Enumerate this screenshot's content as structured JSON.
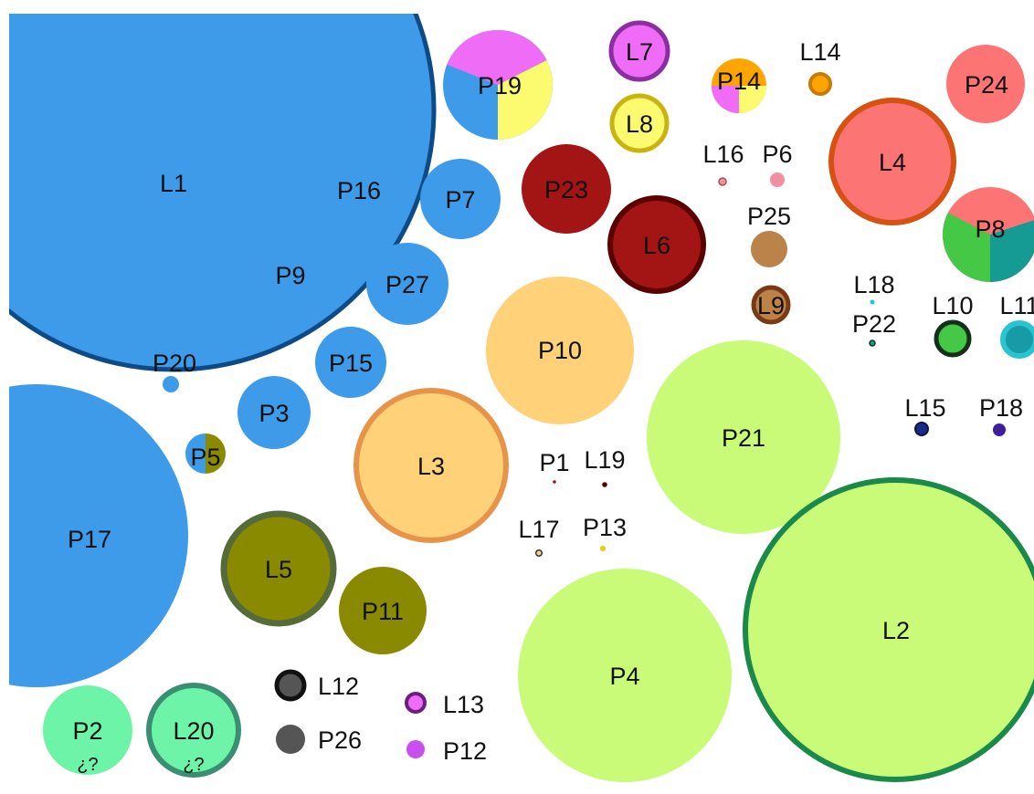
{
  "colors": {
    "blue": "#3d9bea",
    "blue_dark_outline": "#0e4a86",
    "light_orange": "#ffd27a",
    "orange_outline": "#e8934a",
    "green_light": "#c9fb79",
    "green_outline": "#1a8a4a",
    "mint": "#6ef4a8",
    "teal_outline": "#3a8f73",
    "olive": "#8a8a00",
    "olive_outline": "#556b3a",
    "dark_red": "#a31414",
    "darkest_red": "#5a0000",
    "salmon": "#fd7474",
    "salmon_outline": "#d55212",
    "brown": "#bb8249",
    "brown_outline": "#7a3b14",
    "magenta": "#ee6cf6",
    "purple_outline": "#8a2ea0",
    "yellow": "#fcfa6f",
    "gold_outline": "#c9b30e",
    "orange": "#ffa500",
    "green_med": "#44c846",
    "dark_green": "#13311a",
    "teal": "#169a94",
    "cyan": "#28c4d0",
    "cyan_dark": "#189ba6",
    "navy": "#1a2a8a",
    "indigo": "#3b1f9b",
    "gray": "#555555",
    "pink": "#f08f9f"
  },
  "nodes": {
    "l1": "L1",
    "p17": "P17",
    "p16": "P16",
    "p9": "P9",
    "p20": "P20",
    "p7": "P7",
    "p27": "P27",
    "p15": "P15",
    "p3": "P3",
    "p5": "P5",
    "p19": "P19",
    "l7": "L7",
    "l8": "L8",
    "p14": "P14",
    "l14": "L14",
    "p24": "P24",
    "l4": "L4",
    "p8": "P8",
    "p23": "P23",
    "l6": "L6",
    "l16": "L16",
    "p6": "P6",
    "p25": "P25",
    "l9": "L9",
    "l18": "L18",
    "p22": "P22",
    "l10": "L10",
    "l11": "L11",
    "p10": "P10",
    "p21": "P21",
    "l15": "L15",
    "p18": "P18",
    "l3": "L3",
    "p1": "P1",
    "l19": "L19",
    "l17": "L17",
    "p13": "P13",
    "l5": "L5",
    "p11": "P11",
    "p4": "P4",
    "l2": "L2",
    "p2": "P2",
    "l20": "L20",
    "l12": "L12",
    "p26": "P26",
    "l13": "L13",
    "p12": "P12",
    "unknown_mark": "¿?"
  }
}
